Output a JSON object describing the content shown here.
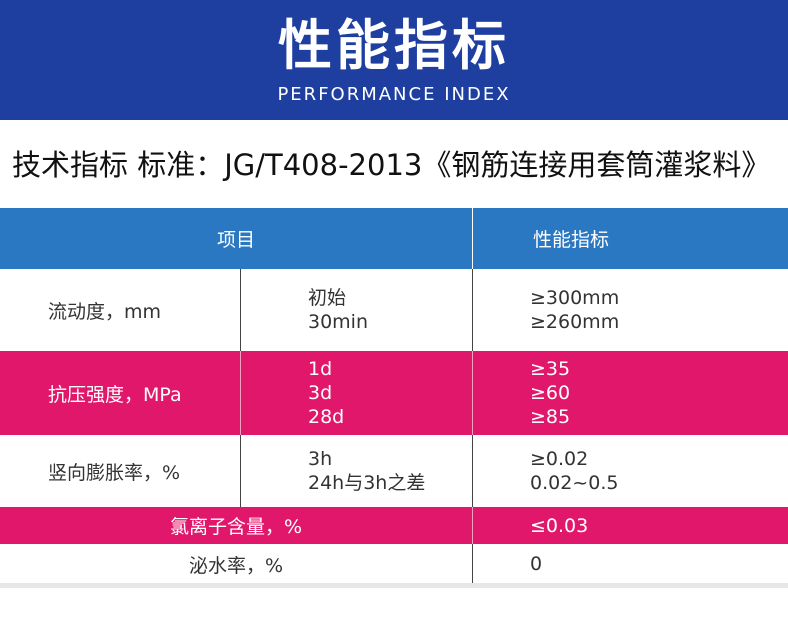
{
  "banner": {
    "title": "性能指标",
    "subtitle": "PERFORMANCE INDEX"
  },
  "standard_line": "技术指标  标准：JG/T408-2013《钢筋连接用套筒灌浆料》",
  "table": {
    "headers": {
      "item": "项目",
      "index": "性能指标"
    },
    "rows": [
      {
        "name": "流动度，mm",
        "sub": [
          "初始",
          "30min"
        ],
        "values": [
          "≥300mm",
          "≥260mm"
        ],
        "highlight": false
      },
      {
        "name": "抗压强度，MPa",
        "sub": [
          "1d",
          "3d",
          "28d"
        ],
        "values": [
          "≥35",
          "≥60",
          "≥85"
        ],
        "highlight": true
      },
      {
        "name": "竖向膨胀率，%",
        "sub": [
          "3h",
          "24h与3h之差"
        ],
        "values": [
          "≥0.02",
          "0.02~0.5"
        ],
        "highlight": false
      },
      {
        "name": "氯离子含量，%",
        "sub": [],
        "values": [
          "≤0.03"
        ],
        "highlight": true
      },
      {
        "name": "泌水率，%",
        "sub": [],
        "values": [
          "0"
        ],
        "highlight": false
      }
    ]
  },
  "colors": {
    "banner": "#1f3fa0",
    "header": "#2a77c2",
    "highlight": "#e0176a"
  }
}
